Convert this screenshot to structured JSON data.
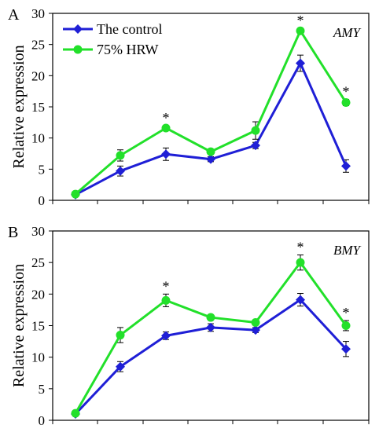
{
  "chart_data": [
    {
      "type": "line",
      "panel_label": "A",
      "gene_label": "AMY",
      "ylabel": "Relative expression",
      "xlabel": "",
      "ylim": [
        0,
        30
      ],
      "yticks": [
        "0",
        "5",
        "10",
        "15",
        "20",
        "25",
        "30"
      ],
      "x_categories": 8,
      "series": [
        {
          "name": "The control",
          "color": "#1f1fd6",
          "marker": "diamond",
          "values": [
            0.9,
            4.7,
            7.4,
            6.6,
            8.8,
            22.0,
            5.5
          ],
          "errors": [
            0.3,
            0.8,
            1.0,
            0.4,
            0.5,
            1.3,
            1.0
          ]
        },
        {
          "name": "75% HRW",
          "color": "#22e02a",
          "marker": "circle",
          "values": [
            1.0,
            7.2,
            11.6,
            7.8,
            11.2,
            27.2,
            15.7
          ],
          "errors": [
            0.3,
            0.9,
            0.4,
            0.4,
            1.4,
            0.4,
            0.5
          ]
        }
      ],
      "significance": [
        {
          "index": 2,
          "label": "*"
        },
        {
          "index": 5,
          "label": "*"
        },
        {
          "index": 6,
          "label": "*"
        }
      ],
      "legend": "top-left",
      "grid": false
    },
    {
      "type": "line",
      "panel_label": "B",
      "gene_label": "BMY",
      "ylabel": "Relative expression",
      "xlabel": "",
      "ylim": [
        0,
        30
      ],
      "yticks": [
        "0",
        "5",
        "10",
        "15",
        "20",
        "25",
        "30"
      ],
      "x_categories": 8,
      "series": [
        {
          "name": "The control",
          "color": "#1f1fd6",
          "marker": "diamond",
          "values": [
            1.0,
            8.5,
            13.4,
            14.7,
            14.3,
            19.1,
            11.3
          ],
          "errors": [
            0.3,
            0.8,
            0.6,
            0.6,
            0.4,
            1.0,
            1.2
          ]
        },
        {
          "name": "75% HRW",
          "color": "#22e02a",
          "marker": "circle",
          "values": [
            1.1,
            13.5,
            19.0,
            16.3,
            15.5,
            25.0,
            15.0
          ],
          "errors": [
            0.3,
            1.2,
            1.0,
            0.4,
            0.3,
            1.2,
            0.8
          ]
        }
      ],
      "significance": [
        {
          "index": 2,
          "label": "*"
        },
        {
          "index": 5,
          "label": "*"
        },
        {
          "index": 6,
          "label": "*"
        }
      ],
      "legend": "none",
      "grid": false
    }
  ]
}
